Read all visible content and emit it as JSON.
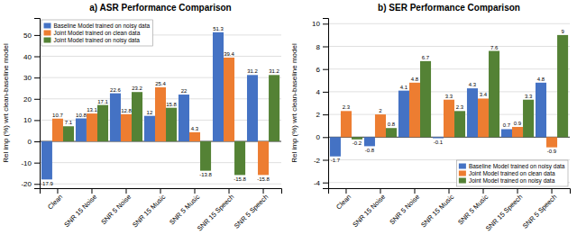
{
  "chart_data": [
    {
      "type": "bar",
      "title": "a) ASR Performance Comparison",
      "y_label": "Rel imp (%) wrt clean-baseline model",
      "categories": [
        "Clean",
        "SNR 15 Noise",
        "SNR 5 Noise",
        "SNR 15 Music",
        "SNR 5 Music",
        "SNR 15 Speech",
        "SNR 5 Speech"
      ],
      "series": [
        {
          "name": "Baseline Model trained on noisy data",
          "color": "#4472C4",
          "values": [
            -17.9,
            10.8,
            22.6,
            12.0,
            22.0,
            51.3,
            31.2
          ]
        },
        {
          "name": "Joint Model trained on clean data",
          "color": "#ED7D31",
          "values": [
            10.7,
            13.1,
            12.8,
            25.4,
            4.3,
            39.4,
            -15.8
          ]
        },
        {
          "name": "Joint Model trained on noisy data",
          "color": "#548235",
          "values": [
            7.1,
            17.1,
            23.2,
            15.8,
            -13.8,
            -15.8,
            31.2
          ]
        }
      ],
      "ylim": [
        -22,
        58
      ],
      "yticks": [
        -20,
        -10,
        0,
        10,
        20,
        30,
        40,
        50
      ],
      "grid": true,
      "legend": "upper left",
      "data_labels": true
    },
    {
      "type": "bar",
      "title": "b) SER Performance Comparison",
      "y_label": "Rel imp (%) wrt clean-baseline model",
      "categories": [
        "Clean",
        "SNR 15 Noise",
        "SNR 5 Noise",
        "SNR 15 Music",
        "SNR 5 Music",
        "SNR 15 Speech",
        "SNR 5 Speech"
      ],
      "series": [
        {
          "name": "Baseline Model trained on noisy data",
          "color": "#4472C4",
          "values": [
            -1.7,
            -0.8,
            4.1,
            -0.1,
            4.3,
            0.7,
            4.8
          ]
        },
        {
          "name": "Joint Model trained on clean data",
          "color": "#ED7D31",
          "values": [
            2.3,
            2.0,
            4.8,
            3.3,
            3.4,
            0.9,
            -0.9
          ]
        },
        {
          "name": "Joint Model trained on noisy data",
          "color": "#548235",
          "values": [
            -0.2,
            0.8,
            6.7,
            2.3,
            7.6,
            3.3,
            9.0
          ]
        }
      ],
      "ylim": [
        -4.5,
        10.5
      ],
      "yticks": [
        -4,
        -2,
        0,
        2,
        4,
        6,
        8,
        10
      ],
      "grid": true,
      "legend": "lower right",
      "data_labels": true
    }
  ]
}
